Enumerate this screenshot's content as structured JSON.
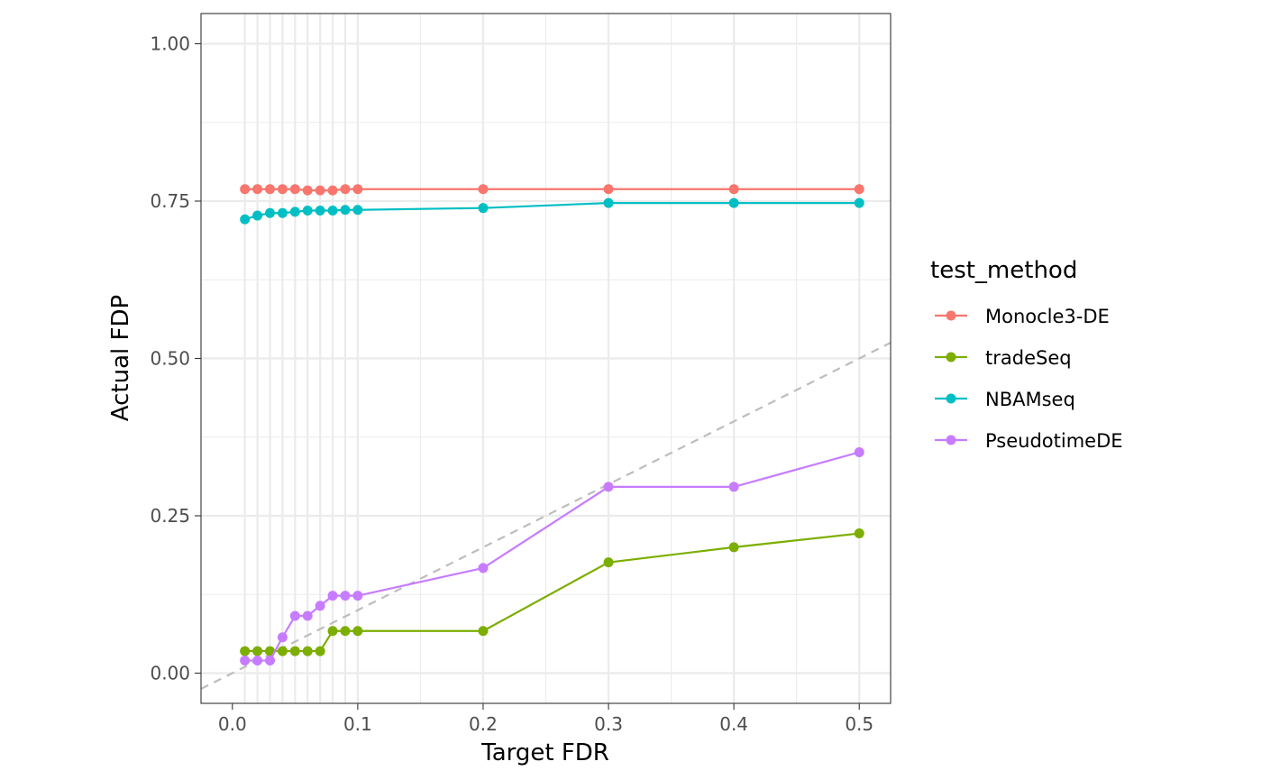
{
  "chart_data": {
    "type": "line",
    "title": "",
    "xlabel": "Target FDR",
    "ylabel": "Actual FDP",
    "xlim": [
      -0.025,
      0.525
    ],
    "ylim": [
      -0.048,
      1.048
    ],
    "grid": true,
    "x_ticks": [
      0.0,
      0.1,
      0.2,
      0.3,
      0.4,
      0.5
    ],
    "x_tick_labels": [
      "0.0",
      "0.1",
      "0.2",
      "0.3",
      "0.4",
      "0.5"
    ],
    "y_ticks": [
      0.0,
      0.25,
      0.5,
      0.75,
      1.0
    ],
    "y_tick_labels": [
      "0.00",
      "0.25",
      "0.50",
      "0.75",
      "1.00"
    ],
    "reference_line": {
      "slope": 1,
      "intercept": 0,
      "style": "dashed",
      "color": "#bdbdbd"
    },
    "legend": {
      "title": "test_method",
      "position": "right"
    },
    "x": [
      0.01,
      0.02,
      0.03,
      0.04,
      0.05,
      0.06,
      0.07,
      0.08,
      0.09,
      0.1,
      0.2,
      0.3,
      0.4,
      0.5
    ],
    "series": [
      {
        "name": "Monocle3-DE",
        "color": "#F8766D",
        "values": [
          0.769,
          0.769,
          0.769,
          0.769,
          0.769,
          0.767,
          0.767,
          0.767,
          0.769,
          0.769,
          0.769,
          0.769,
          0.769,
          0.769
        ]
      },
      {
        "name": "tradeSeq",
        "color": "#7CAE00",
        "values": [
          0.035,
          0.035,
          0.035,
          0.035,
          0.035,
          0.035,
          0.035,
          0.067,
          0.067,
          0.067,
          0.067,
          0.176,
          0.2,
          0.222
        ]
      },
      {
        "name": "NBAMseq",
        "color": "#00BFC4",
        "values": [
          0.721,
          0.727,
          0.731,
          0.731,
          0.733,
          0.735,
          0.735,
          0.735,
          0.736,
          0.736,
          0.739,
          0.747,
          0.747,
          0.747
        ]
      },
      {
        "name": "PseudotimeDE",
        "color": "#C77CFF",
        "values": [
          0.02,
          0.02,
          0.02,
          0.057,
          0.091,
          0.091,
          0.107,
          0.123,
          0.123,
          0.123,
          0.167,
          0.296,
          0.296,
          0.351
        ]
      }
    ]
  }
}
